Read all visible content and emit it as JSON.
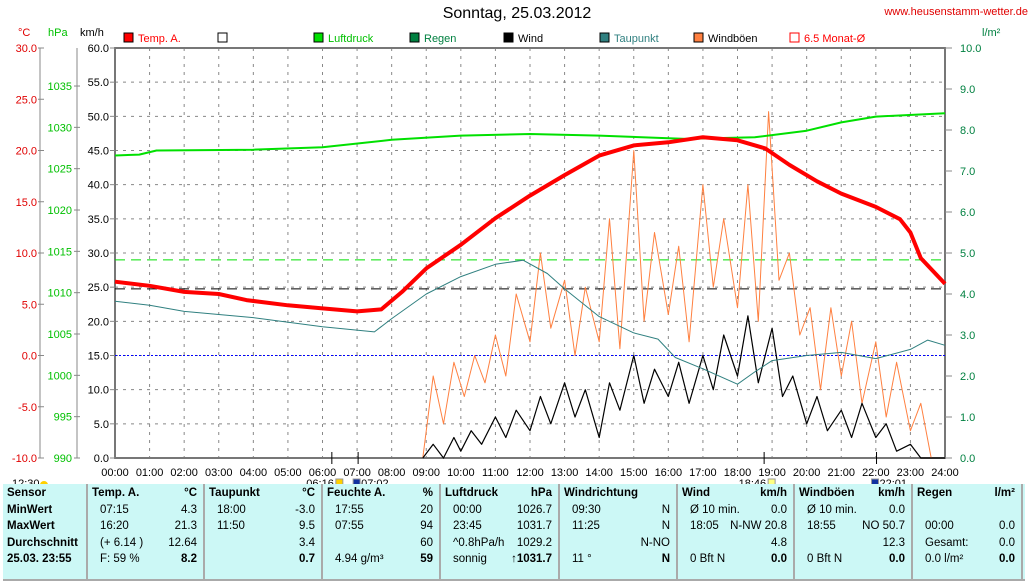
{
  "header": {
    "title": "Sonntag, 25.03.2012",
    "url": "www.heusenstamm-wetter.de"
  },
  "colors": {
    "temp": "#ff0000",
    "pressure": "#00e000",
    "rain": "#008040",
    "wind": "#000000",
    "dewpoint": "#308080",
    "gusts": "#ff8040",
    "month_avg": "#ff0000",
    "zero_line": "#0000ff"
  },
  "chart_data": {
    "type": "line",
    "title": "Sonntag, 25.03.2012",
    "axes": {
      "temp": {
        "unit": "°C",
        "range": [
          -10,
          30
        ],
        "ticks": [
          "30.0",
          "25.0",
          "20.0",
          "15.0",
          "10.0",
          "5.0",
          "0.0",
          "-5.0",
          "-10.0"
        ]
      },
      "pressure": {
        "unit": "hPa",
        "range": [
          990,
          1039.6
        ],
        "ticks": [
          "1035",
          "1030",
          "1025",
          "1020",
          "1015",
          "1010",
          "1005",
          "1000",
          "995",
          "990"
        ]
      },
      "wind": {
        "unit": "km/h",
        "range": [
          0,
          60
        ],
        "ticks": [
          "60.0",
          "55.0",
          "50.0",
          "45.0",
          "40.0",
          "35.0",
          "30.0",
          "25.0",
          "20.0",
          "15.0",
          "10.0",
          "5.0",
          "0.0"
        ]
      },
      "rain": {
        "unit": "l/m²",
        "range": [
          0,
          10
        ],
        "ticks": [
          "10.0",
          "9.0",
          "8.0",
          "7.0",
          "6.0",
          "5.0",
          "4.0",
          "3.0",
          "2.0",
          "1.0",
          "0.0"
        ]
      },
      "x": {
        "range": [
          0,
          24
        ],
        "ticks": [
          "00:00",
          "01:00",
          "02:00",
          "03:00",
          "04:00",
          "05:00",
          "06:00",
          "07:00",
          "08:00",
          "09:00",
          "10:00",
          "11:00",
          "12:00",
          "13:00",
          "14:00",
          "15:00",
          "16:00",
          "17:00",
          "18:00",
          "19:00",
          "20:00",
          "21:00",
          "22:00",
          "23:00",
          "24:00"
        ]
      }
    },
    "legend": [
      "Temp. A.",
      "",
      "Luftdruck",
      "Regen",
      "Wind",
      "Taupunkt",
      "Windböen",
      "6.5 Monat-Ø"
    ],
    "series": [
      {
        "name": "Temp. A.",
        "axis": "temp",
        "points": [
          [
            0,
            7.2
          ],
          [
            1,
            6.8
          ],
          [
            2,
            6.2
          ],
          [
            3,
            6.0
          ],
          [
            3.8,
            5.4
          ],
          [
            5,
            4.9
          ],
          [
            6,
            4.6
          ],
          [
            7,
            4.3
          ],
          [
            7.7,
            4.5
          ],
          [
            8.3,
            6.2
          ],
          [
            9,
            8.5
          ],
          [
            10,
            10.8
          ],
          [
            11,
            13.4
          ],
          [
            12,
            15.6
          ],
          [
            13,
            17.6
          ],
          [
            14,
            19.5
          ],
          [
            15,
            20.5
          ],
          [
            16,
            20.8
          ],
          [
            17,
            21.3
          ],
          [
            18,
            21.0
          ],
          [
            18.8,
            20.2
          ],
          [
            19.5,
            18.6
          ],
          [
            20.3,
            17
          ],
          [
            21,
            15.8
          ],
          [
            22,
            14.5
          ],
          [
            22.7,
            13.3
          ],
          [
            23,
            12
          ],
          [
            23.3,
            9.5
          ],
          [
            24,
            7.0
          ]
        ]
      },
      {
        "name": "Luftdruck",
        "axis": "pressure",
        "points": [
          [
            0,
            1026.6
          ],
          [
            0.7,
            1026.7
          ],
          [
            1.2,
            1027.2
          ],
          [
            4,
            1027.3
          ],
          [
            6,
            1027.6
          ],
          [
            8,
            1028.5
          ],
          [
            10,
            1029.0
          ],
          [
            12,
            1029.2
          ],
          [
            14,
            1029.0
          ],
          [
            16.5,
            1028.6
          ],
          [
            18.5,
            1028.8
          ],
          [
            20,
            1029.6
          ],
          [
            21,
            1030.6
          ],
          [
            22,
            1031.3
          ],
          [
            24,
            1031.7
          ]
        ]
      },
      {
        "name": "Taupunkt",
        "axis": "temp",
        "points": [
          [
            0,
            5.3
          ],
          [
            1,
            4.9
          ],
          [
            2,
            4.3
          ],
          [
            4,
            3.7
          ],
          [
            6,
            2.8
          ],
          [
            7.5,
            2.3
          ],
          [
            8,
            3.6
          ],
          [
            9,
            6.0
          ],
          [
            10,
            7.7
          ],
          [
            11,
            8.9
          ],
          [
            11.8,
            9.3
          ],
          [
            12.5,
            8.0
          ],
          [
            13,
            6.5
          ],
          [
            14,
            3.8
          ],
          [
            15,
            2.2
          ],
          [
            15.7,
            1.6
          ],
          [
            16.2,
            -0.2
          ],
          [
            17,
            -1.3
          ],
          [
            18,
            -2.8
          ],
          [
            18.5,
            -1.6
          ],
          [
            19,
            -0.5
          ],
          [
            20,
            0.0
          ],
          [
            21,
            0.3
          ],
          [
            22,
            -0.3
          ],
          [
            23,
            0.6
          ],
          [
            23.5,
            1.5
          ],
          [
            24,
            1.0
          ]
        ]
      },
      {
        "name": "Wind",
        "axis": "wind",
        "points": [
          [
            8.9,
            0
          ],
          [
            9.2,
            2
          ],
          [
            9.5,
            0
          ],
          [
            9.8,
            3
          ],
          [
            10,
            1
          ],
          [
            10.3,
            4
          ],
          [
            10.6,
            2
          ],
          [
            11,
            6
          ],
          [
            11.3,
            3
          ],
          [
            11.6,
            7
          ],
          [
            12,
            4
          ],
          [
            12.3,
            9
          ],
          [
            12.6,
            5
          ],
          [
            13,
            11
          ],
          [
            13.3,
            6
          ],
          [
            13.6,
            10
          ],
          [
            14,
            3
          ],
          [
            14.3,
            11
          ],
          [
            14.6,
            7
          ],
          [
            15,
            15
          ],
          [
            15.3,
            8
          ],
          [
            15.6,
            13
          ],
          [
            16,
            9
          ],
          [
            16.3,
            14
          ],
          [
            16.6,
            8
          ],
          [
            17,
            15
          ],
          [
            17.3,
            10
          ],
          [
            17.6,
            18
          ],
          [
            18,
            12
          ],
          [
            18.3,
            20.8
          ],
          [
            18.6,
            11
          ],
          [
            19,
            19
          ],
          [
            19.3,
            9
          ],
          [
            19.6,
            12
          ],
          [
            20,
            5
          ],
          [
            20.3,
            9
          ],
          [
            20.6,
            4
          ],
          [
            21,
            7
          ],
          [
            21.3,
            3
          ],
          [
            21.6,
            8
          ],
          [
            22,
            3
          ],
          [
            22.3,
            5
          ],
          [
            22.6,
            1
          ],
          [
            23,
            2
          ],
          [
            23.3,
            0
          ],
          [
            24,
            0
          ]
        ]
      },
      {
        "name": "Windböen",
        "axis": "wind",
        "points": [
          [
            8.9,
            0
          ],
          [
            9.2,
            12
          ],
          [
            9.5,
            5
          ],
          [
            9.8,
            14
          ],
          [
            10.1,
            9
          ],
          [
            10.4,
            15
          ],
          [
            10.7,
            11
          ],
          [
            11,
            18
          ],
          [
            11.3,
            12
          ],
          [
            11.6,
            24
          ],
          [
            12,
            17
          ],
          [
            12.3,
            30
          ],
          [
            12.6,
            19
          ],
          [
            13,
            26
          ],
          [
            13.3,
            15
          ],
          [
            13.6,
            25
          ],
          [
            14,
            17
          ],
          [
            14.3,
            35
          ],
          [
            14.6,
            16
          ],
          [
            15,
            45
          ],
          [
            15.3,
            20
          ],
          [
            15.6,
            33
          ],
          [
            16,
            21
          ],
          [
            16.3,
            31
          ],
          [
            16.6,
            17
          ],
          [
            17,
            40
          ],
          [
            17.3,
            25
          ],
          [
            17.6,
            35
          ],
          [
            18,
            22
          ],
          [
            18.3,
            40
          ],
          [
            18.6,
            20
          ],
          [
            18.9,
            50.7
          ],
          [
            19.2,
            26
          ],
          [
            19.5,
            30
          ],
          [
            19.8,
            18
          ],
          [
            20.1,
            22
          ],
          [
            20.4,
            10
          ],
          [
            20.7,
            22
          ],
          [
            21,
            12
          ],
          [
            21.3,
            20
          ],
          [
            21.6,
            8
          ],
          [
            22,
            17
          ],
          [
            22.3,
            6
          ],
          [
            22.6,
            14
          ],
          [
            23,
            4
          ],
          [
            23.3,
            8
          ],
          [
            23.6,
            0
          ],
          [
            24,
            0
          ]
        ]
      }
    ],
    "reference_lines": [
      {
        "name": "6.5 Monat-Ø",
        "axis": "temp",
        "value": 6.5
      },
      {
        "name": "green-dashed",
        "axis": "wind",
        "value": 29.0
      },
      {
        "name": "0°C",
        "axis": "temp",
        "value": 0
      }
    ],
    "events": {
      "left_time": "12:30",
      "sunrise": "06:16",
      "moonrise": "07:02",
      "sunset": "18:46",
      "moonset": "22:01"
    }
  },
  "table": [
    {
      "rows": [
        [
          "Sensor",
          ""
        ],
        [
          "MinWert",
          ""
        ],
        [
          "MaxWert",
          ""
        ],
        [
          "Durchschnitt",
          ""
        ],
        [
          "25.03. 23:55",
          ""
        ]
      ],
      "bold_all": true
    },
    {
      "rows": [
        [
          "Temp. A.",
          "°C"
        ],
        [
          "07:15",
          "4.3"
        ],
        [
          "16:20",
          "21.3"
        ],
        [
          "(+ 6.14 )",
          "12.64"
        ],
        [
          "F: 59 %",
          "8.2"
        ]
      ]
    },
    {
      "rows": [
        [
          "Taupunkt",
          "°C"
        ],
        [
          "18:00",
          "-3.0"
        ],
        [
          "11:50",
          "9.5"
        ],
        [
          "",
          "3.4"
        ],
        [
          "",
          "0.7"
        ]
      ]
    },
    {
      "rows": [
        [
          "Feuchte A.",
          "%"
        ],
        [
          "17:55",
          "20"
        ],
        [
          "07:55",
          "94"
        ],
        [
          "",
          "60"
        ],
        [
          "4.94 g/m³",
          "59"
        ]
      ]
    },
    {
      "rows": [
        [
          "Luftdruck",
          "hPa"
        ],
        [
          "00:00",
          "1026.7"
        ],
        [
          "23:45",
          "1031.7"
        ],
        [
          "^0.8hPa/h",
          "1029.2"
        ],
        [
          "sonnig",
          "↑1031.7"
        ]
      ]
    },
    {
      "rows": [
        [
          "Windrichtung",
          ""
        ],
        [
          "09:30",
          "N"
        ],
        [
          "11:25",
          "N"
        ],
        [
          "",
          "N-NO"
        ],
        [
          "11 °",
          "N"
        ]
      ]
    },
    {
      "rows": [
        [
          "Wind",
          "km/h"
        ],
        [
          "Ø 10 min.",
          "0.0"
        ],
        [
          "18:05",
          "N-NW 20.8"
        ],
        [
          "",
          "4.8"
        ],
        [
          "0 Bft N",
          "0.0"
        ]
      ]
    },
    {
      "rows": [
        [
          "Windböen",
          "km/h"
        ],
        [
          "Ø 10 min.",
          "0.0"
        ],
        [
          "18:55",
          "NO 50.7"
        ],
        [
          "",
          "12.3"
        ],
        [
          "0 Bft N",
          "0.0"
        ]
      ]
    },
    {
      "rows": [
        [
          "Regen",
          "l/m²"
        ],
        [
          "",
          ""
        ],
        [
          "00:00",
          "0.0"
        ],
        [
          "Gesamt:",
          "0.0"
        ],
        [
          "0.0 l/m²",
          "0.0"
        ]
      ]
    }
  ]
}
